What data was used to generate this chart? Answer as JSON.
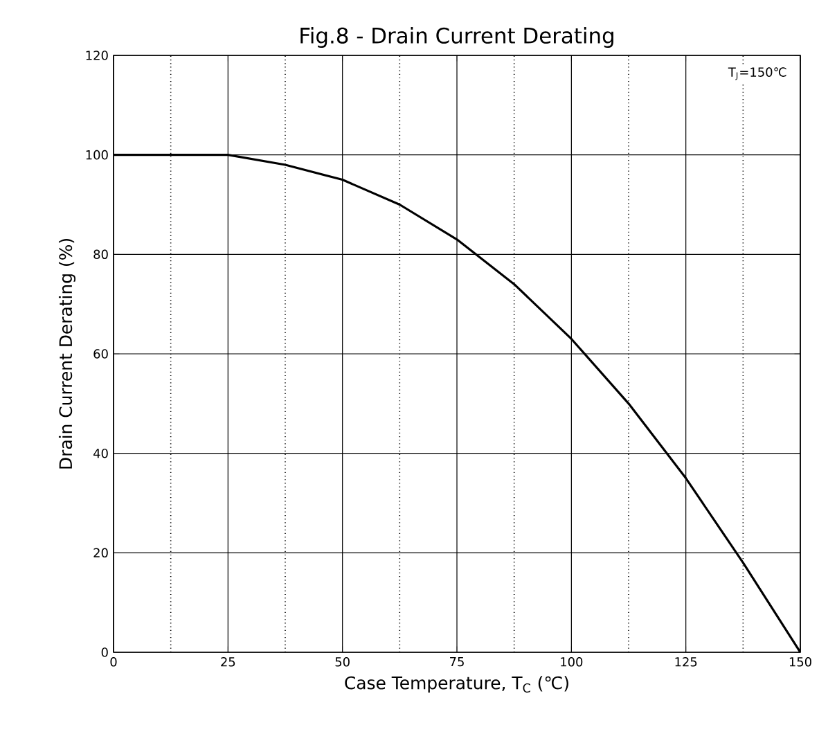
{
  "chart_data": {
    "type": "line",
    "title": "Fig.8 - Drain Current Derating",
    "xlabel": "Case Temperature, T$_{C}$ (℃)",
    "ylabel": "Drain Current Derating (%)",
    "annotations": [
      "T$_{J}$=150℃"
    ],
    "x": [
      0,
      12.5,
      25,
      37.5,
      50,
      62.5,
      75,
      87.5,
      100,
      112.5,
      125,
      137.5,
      150
    ],
    "series": [
      {
        "color": "#000000",
        "values": [
          100,
          100,
          100,
          98,
          95,
          90,
          83,
          74,
          63,
          50,
          35,
          18,
          0
        ]
      }
    ],
    "xlim": [
      0,
      150
    ],
    "ylim": [
      0,
      120
    ],
    "xticks": [
      0,
      {
        "value": 12.5,
        "label": null
      },
      25,
      {
        "value": 37.5,
        "label": null
      },
      50,
      {
        "value": 62.5,
        "label": null
      },
      75,
      {
        "value": 87.5,
        "label": null
      },
      100,
      {
        "value": 112.5,
        "label": null
      },
      125,
      {
        "value": 137.5,
        "label": null
      },
      150
    ],
    "yticks": [
      0,
      20,
      40,
      60,
      80,
      100,
      120
    ],
    "grid": true,
    "marker": "none",
    "line_style": "solid"
  }
}
